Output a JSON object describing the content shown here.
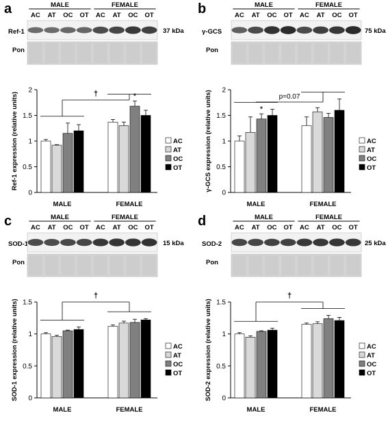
{
  "colors": {
    "AC": "#ffffff",
    "AT": "#d9d9d9",
    "OC": "#808080",
    "OT": "#000000",
    "blot_band": "#1a1a1a",
    "blot_bg": "#f2f2f2",
    "pon_bg": "#d4d4d4"
  },
  "panels": [
    {
      "letter": "a",
      "blot": {
        "lanes": [
          "AC",
          "AT",
          "OC",
          "OT",
          "AC",
          "AT",
          "OC",
          "OT"
        ],
        "group_labels": [
          "MALE",
          "FEMALE"
        ],
        "protein_label": "Ref-1",
        "kda_label": "37 kDa",
        "pon_label": "Pon",
        "band_intensity": [
          0.45,
          0.45,
          0.48,
          0.5,
          0.7,
          0.75,
          0.85,
          0.78
        ]
      },
      "chart_data": {
        "type": "bar",
        "categories": [
          "MALE",
          "FEMALE"
        ],
        "series": [
          {
            "name": "AC",
            "values": [
              1.0,
              1.37
            ],
            "errors": [
              0.03,
              0.05
            ]
          },
          {
            "name": "AT",
            "values": [
              0.92,
              1.3
            ],
            "errors": [
              0.01,
              0.07
            ]
          },
          {
            "name": "OC",
            "values": [
              1.15,
              1.68
            ],
            "errors": [
              0.2,
              0.1
            ]
          },
          {
            "name": "OT",
            "values": [
              1.2,
              1.5
            ],
            "errors": [
              0.12,
              0.1
            ]
          }
        ],
        "ylabel": "Ref-1 expression (relative units)",
        "ylim": [
          0,
          2
        ],
        "yticks": [
          "0",
          "0.5",
          "1",
          "1.5",
          "2"
        ],
        "legend_position": "right",
        "annotations": {
          "dagger": "†",
          "star_text": "*",
          "star_series": "OC",
          "star_group": "FEMALE",
          "p_text": ""
        }
      }
    },
    {
      "letter": "b",
      "blot": {
        "lanes": [
          "AC",
          "AT",
          "OC",
          "OT",
          "AC",
          "AT",
          "OC",
          "OT"
        ],
        "group_labels": [
          "MALE",
          "FEMALE"
        ],
        "protein_label": "γ-GCS",
        "kda_label": "75 kDa",
        "pon_label": "Pon",
        "band_intensity": [
          0.55,
          0.7,
          0.9,
          0.95,
          0.7,
          0.8,
          0.85,
          0.95
        ]
      },
      "chart_data": {
        "type": "bar",
        "categories": [
          "MALE",
          "FEMALE"
        ],
        "series": [
          {
            "name": "AC",
            "values": [
              1.0,
              1.3
            ],
            "errors": [
              0.1,
              0.17
            ]
          },
          {
            "name": "AT",
            "values": [
              1.17,
              1.57
            ],
            "errors": [
              0.3,
              0.08
            ]
          },
          {
            "name": "OC",
            "values": [
              1.43,
              1.46
            ],
            "errors": [
              0.1,
              0.08
            ]
          },
          {
            "name": "OT",
            "values": [
              1.5,
              1.6
            ],
            "errors": [
              0.12,
              0.22
            ]
          }
        ],
        "ylabel": "γ-GCS expression (relative units)",
        "ylim": [
          0,
          2
        ],
        "yticks": [
          "0",
          "0.5",
          "1",
          "1.5",
          "2"
        ],
        "legend_position": "right",
        "annotations": {
          "dagger": "",
          "star_text": "*",
          "star_series": "OC",
          "star_group": "MALE",
          "p_text": "p=0.07"
        }
      }
    },
    {
      "letter": "c",
      "blot": {
        "lanes": [
          "AC",
          "AT",
          "OC",
          "OT",
          "AC",
          "AT",
          "OC",
          "OT"
        ],
        "group_labels": [
          "MALE",
          "FEMALE"
        ],
        "protein_label": "SOD-1",
        "kda_label": "15 kDa",
        "pon_label": "Pon",
        "band_intensity": [
          0.7,
          0.7,
          0.72,
          0.75,
          0.85,
          0.88,
          0.88,
          0.9
        ]
      },
      "chart_data": {
        "type": "bar",
        "categories": [
          "MALE",
          "FEMALE"
        ],
        "series": [
          {
            "name": "AC",
            "values": [
              1.0,
              1.12
            ],
            "errors": [
              0.02,
              0.02
            ]
          },
          {
            "name": "AT",
            "values": [
              0.96,
              1.17
            ],
            "errors": [
              0.02,
              0.03
            ]
          },
          {
            "name": "OC",
            "values": [
              1.05,
              1.18
            ],
            "errors": [
              0.01,
              0.05
            ]
          },
          {
            "name": "OT",
            "values": [
              1.07,
              1.22
            ],
            "errors": [
              0.04,
              0.02
            ]
          }
        ],
        "ylabel": "SOD-1 expression (relative units)",
        "ylim": [
          0,
          1.5
        ],
        "yticks": [
          "0",
          "0.5",
          "1",
          "1.5"
        ],
        "legend_position": "right",
        "annotations": {
          "dagger": "†",
          "star_text": "",
          "star_series": "",
          "star_group": "",
          "p_text": ""
        }
      }
    },
    {
      "letter": "d",
      "blot": {
        "lanes": [
          "AC",
          "AT",
          "OC",
          "OT",
          "AC",
          "AT",
          "OC",
          "OT"
        ],
        "group_labels": [
          "MALE",
          "FEMALE"
        ],
        "protein_label": "SOD-2",
        "kda_label": "25 kDa",
        "pon_label": "Pon",
        "band_intensity": [
          0.75,
          0.75,
          0.78,
          0.78,
          0.85,
          0.85,
          0.88,
          0.85
        ]
      },
      "chart_data": {
        "type": "bar",
        "categories": [
          "MALE",
          "FEMALE"
        ],
        "series": [
          {
            "name": "AC",
            "values": [
              1.0,
              1.15
            ],
            "errors": [
              0.02,
              0.02
            ]
          },
          {
            "name": "AT",
            "values": [
              0.95,
              1.16
            ],
            "errors": [
              0.02,
              0.03
            ]
          },
          {
            "name": "OC",
            "values": [
              1.04,
              1.24
            ],
            "errors": [
              0.01,
              0.05
            ]
          },
          {
            "name": "OT",
            "values": [
              1.06,
              1.21
            ],
            "errors": [
              0.03,
              0.05
            ]
          }
        ],
        "ylabel": "SOD-2 expression (relative units)",
        "ylim": [
          0,
          1.5
        ],
        "yticks": [
          "0",
          "0.5",
          "1",
          "1.5"
        ],
        "legend_position": "right",
        "annotations": {
          "dagger": "†",
          "star_text": "",
          "star_series": "",
          "star_group": "",
          "p_text": ""
        }
      }
    }
  ]
}
